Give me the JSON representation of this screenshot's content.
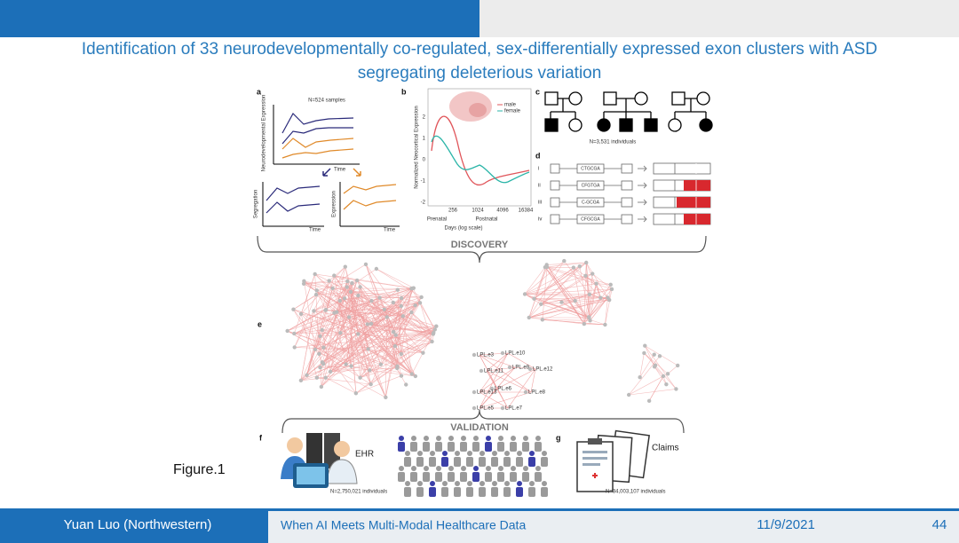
{
  "header": {
    "title_lines": [
      "Identification of 33 neurodevelopmentally co-regulated, sex-differentially expressed exon clusters with ASD",
      "segregating deleterious variation"
    ]
  },
  "figure": {
    "panel_a": {
      "letter": "a",
      "samples": "N=524 samples",
      "y_label": "Neurodevelopmental Expression",
      "x_label": "Time",
      "seg_y_label": "Segregation",
      "seg_x_label": "Time",
      "expr_y_label": "Expression",
      "expr_x_label": "Time"
    },
    "panel_b": {
      "letter": "b",
      "y_label": "Normalized Neocortical Expression",
      "legend": [
        "male",
        "female"
      ],
      "x_ticks": [
        "256",
        "1024",
        "4096",
        "16384"
      ],
      "y_ticks": [
        "2",
        "1",
        "0",
        "-1",
        "-2"
      ],
      "prenatal": "Prenatal",
      "postnatal": "Postnatal",
      "x_label": "Days (log scale)"
    },
    "panel_c": {
      "letter": "c",
      "individuals": "N=3,531 individuals"
    },
    "panel_d": {
      "letter": "d",
      "rows": [
        {
          "numeral": "i",
          "sequence": "CTGCGA"
        },
        {
          "numeral": "ii",
          "sequence": "CFGTGA"
        },
        {
          "numeral": "iii",
          "sequence": "C-GCGA"
        },
        {
          "numeral": "iv",
          "sequence": "CFGCGA"
        }
      ]
    },
    "discovery": "DISCOVERY",
    "panel_e": {
      "letter": "e",
      "lpl_labels": [
        "LPL.e3",
        "LPL.e10",
        "LPL.e11",
        "LPL.e9",
        "LPL.e12",
        "LPL.e6",
        "LPL.e13",
        "LPL.e8",
        "LPL.e5",
        "LPL.e7"
      ]
    },
    "validation": "VALIDATION",
    "panel_f": {
      "letter": "f",
      "ehr": "EHR",
      "individuals": "N=2,750,021 individuals"
    },
    "panel_g": {
      "letter": "g",
      "claims": "Claims",
      "individuals": "N=34,003,107 individuals"
    }
  },
  "caption": "Figure.1",
  "footer": {
    "author": "Yuan Luo (Northwestern)",
    "talk": "When AI Meets Multi-Modal Healthcare Data",
    "date": "11/9/2021",
    "page": "44"
  }
}
